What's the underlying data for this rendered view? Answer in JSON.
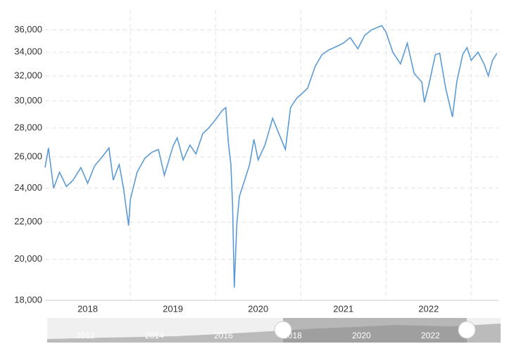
{
  "chart_data": {
    "type": "line",
    "log_scale": true,
    "grid": true,
    "color": "#5b9bd5",
    "xlim": [
      2018,
      2023.32
    ],
    "xticks": [
      {
        "value": 2018.5,
        "label": "2018"
      },
      {
        "value": 2019.5,
        "label": "2019"
      },
      {
        "value": 2020.5,
        "label": "2020"
      },
      {
        "value": 2021.5,
        "label": "2021"
      },
      {
        "value": 2022.5,
        "label": "2022"
      }
    ],
    "ylim": [
      18000,
      37900
    ],
    "yticks": [
      {
        "value": 18000,
        "label": "18,000"
      },
      {
        "value": 20000,
        "label": "20,000"
      },
      {
        "value": 22000,
        "label": "22,000"
      },
      {
        "value": 24000,
        "label": "24,000"
      },
      {
        "value": 26000,
        "label": "26,000"
      },
      {
        "value": 28000,
        "label": "28,000"
      },
      {
        "value": 30000,
        "label": "30,000"
      },
      {
        "value": 32000,
        "label": "32,000"
      },
      {
        "value": 34000,
        "label": "34,000"
      },
      {
        "value": 36000,
        "label": "36,000"
      }
    ],
    "x": [
      2018.0,
      2018.04,
      2018.1,
      2018.17,
      2018.25,
      2018.33,
      2018.42,
      2018.5,
      2018.58,
      2018.67,
      2018.75,
      2018.8,
      2018.87,
      2018.92,
      2018.98,
      2019.0,
      2019.08,
      2019.17,
      2019.25,
      2019.33,
      2019.4,
      2019.5,
      2019.55,
      2019.62,
      2019.7,
      2019.77,
      2019.85,
      2019.92,
      2020.0,
      2020.08,
      2020.12,
      2020.15,
      2020.18,
      2020.2,
      2020.22,
      2020.25,
      2020.28,
      2020.33,
      2020.4,
      2020.45,
      2020.5,
      2020.58,
      2020.67,
      2020.75,
      2020.82,
      2020.88,
      2020.95,
      2021.0,
      2021.08,
      2021.17,
      2021.25,
      2021.33,
      2021.42,
      2021.5,
      2021.58,
      2021.67,
      2021.75,
      2021.83,
      2021.95,
      2022.0,
      2022.08,
      2022.17,
      2022.25,
      2022.33,
      2022.42,
      2022.45,
      2022.5,
      2022.58,
      2022.63,
      2022.7,
      2022.78,
      2022.83,
      2022.9,
      2022.95,
      2023.0,
      2023.08,
      2023.15,
      2023.2,
      2023.25,
      2023.3
    ],
    "values": [
      25300,
      26600,
      24000,
      25000,
      24100,
      24500,
      25300,
      24300,
      25400,
      26000,
      26600,
      24500,
      25500,
      24000,
      21800,
      23300,
      25000,
      25900,
      26300,
      26500,
      24800,
      26700,
      27300,
      25800,
      26800,
      26200,
      27600,
      28000,
      28600,
      29300,
      29500,
      27000,
      25500,
      23000,
      18600,
      21900,
      23500,
      24300,
      25500,
      27200,
      25800,
      26800,
      28700,
      27500,
      26500,
      29500,
      30200,
      30500,
      31000,
      32800,
      33800,
      34200,
      34500,
      34800,
      35300,
      34300,
      35500,
      36000,
      36400,
      35800,
      34000,
      33000,
      34800,
      32200,
      31500,
      29900,
      31200,
      33800,
      33900,
      31000,
      28800,
      31500,
      33800,
      34400,
      33300,
      34000,
      33000,
      32000,
      33300,
      33900
    ]
  },
  "navigator": {
    "labels": [
      "2012",
      "2014",
      "2016",
      "2018",
      "2020",
      "2022"
    ]
  }
}
